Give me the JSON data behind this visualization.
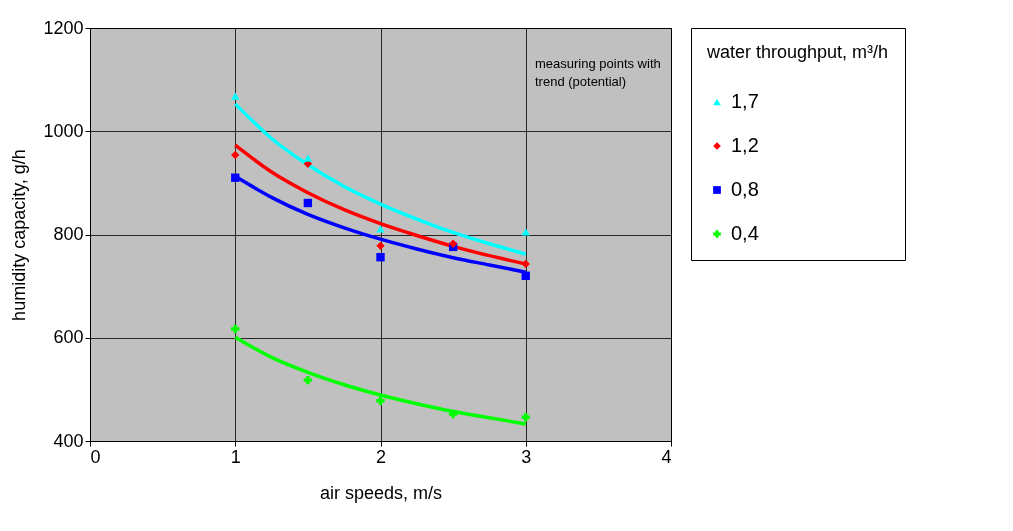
{
  "chart_data": {
    "type": "scatter",
    "xlabel": "air speeds, m/s",
    "ylabel": "humidity capacity, g/h",
    "legend_title": "water throughput, m³/h",
    "x": [
      1,
      1.5,
      2,
      2.5,
      3
    ],
    "series": [
      {
        "name": "1,7",
        "color": "#00ffff",
        "marker": "triangle",
        "values": [
          1068,
          948,
          811,
          null,
          805
        ]
      },
      {
        "name": "1,2",
        "color": "#ff0000",
        "marker": "diamond",
        "values": [
          954,
          937,
          778,
          782,
          743
        ]
      },
      {
        "name": "0,8",
        "color": "#0000ff",
        "marker": "square",
        "values": [
          910,
          861,
          756,
          776,
          720
        ]
      },
      {
        "name": "0,4",
        "color": "#00ff00",
        "marker": "cross",
        "values": [
          617,
          518,
          478,
          452,
          446
        ]
      },
      {
        "type": "line",
        "color": "#00ffff",
        "x": [
          1,
          1.25,
          1.5,
          1.75,
          2,
          2.25,
          2.5,
          2.75,
          3
        ],
        "values": [
          1053,
          986,
          935,
          893,
          859,
          830,
          804,
          782,
          762
        ]
      },
      {
        "type": "line",
        "color": "#ff0000",
        "x": [
          1,
          1.25,
          1.5,
          1.75,
          2,
          2.25,
          2.5,
          2.75,
          3
        ],
        "values": [
          973,
          921,
          881,
          848,
          821,
          798,
          777,
          759,
          743
        ]
      },
      {
        "type": "line",
        "color": "#0000ff",
        "x": [
          1,
          1.25,
          1.5,
          1.75,
          2,
          2.25,
          2.5,
          2.75,
          3
        ],
        "values": [
          913,
          872,
          839,
          813,
          791,
          772,
          755,
          741,
          727
        ]
      },
      {
        "type": "line",
        "color": "#00ff00",
        "x": [
          1,
          1.25,
          1.5,
          1.75,
          2,
          2.25,
          2.5,
          2.75,
          3
        ],
        "values": [
          601,
          562,
          533,
          509,
          489,
          472,
          457,
          445,
          433
        ]
      }
    ],
    "xlim": [
      0,
      4
    ],
    "xticks": [
      0,
      1,
      2,
      3,
      4
    ],
    "ylim": [
      400,
      1200
    ],
    "yticks": [
      400,
      600,
      800,
      1000,
      1200
    ],
    "grid": true,
    "legend": "right",
    "line_style": "solid",
    "annotations": [
      "measuring points with trend (potential)"
    ]
  }
}
